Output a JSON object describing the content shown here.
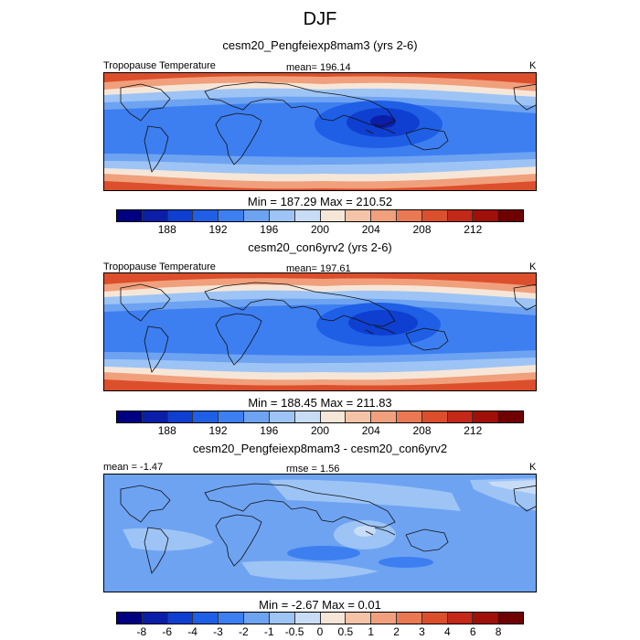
{
  "title": "DJF",
  "panels": [
    {
      "title": "cesm20_Pengfeiexp8mam3 (yrs 2-6)",
      "left_label": "Tropopause Temperature",
      "center_label": "mean= 196.14",
      "right_label": "K",
      "minmax": "Min = 187.29 Max = 210.52",
      "colorbar": {
        "colors": [
          "#000080",
          "#0a1ea8",
          "#0e3fd0",
          "#1f5fe6",
          "#3d7ff0",
          "#6ea3f2",
          "#9dc4f5",
          "#c8dcf6",
          "#f6e6d8",
          "#f5c4a8",
          "#f0a07c",
          "#ea7852",
          "#dc4f2c",
          "#c42818",
          "#a01008",
          "#700000"
        ],
        "tick_labels": [
          "188",
          "192",
          "196",
          "200",
          "204",
          "208",
          "212"
        ]
      }
    },
    {
      "title": "cesm20_con6yrv2 (yrs 2-6)",
      "left_label": "Tropopause Temperature",
      "center_label": "mean= 197.61",
      "right_label": "K",
      "minmax": "Min = 188.45 Max = 211.83",
      "colorbar": {
        "colors": [
          "#000080",
          "#0a1ea8",
          "#0e3fd0",
          "#1f5fe6",
          "#3d7ff0",
          "#6ea3f2",
          "#9dc4f5",
          "#c8dcf6",
          "#f6e6d8",
          "#f5c4a8",
          "#f0a07c",
          "#ea7852",
          "#dc4f2c",
          "#c42818",
          "#a01008",
          "#700000"
        ],
        "tick_labels": [
          "188",
          "192",
          "196",
          "200",
          "204",
          "208",
          "212"
        ]
      }
    },
    {
      "title": "cesm20_Pengfeiexp8mam3 - cesm20_con6yrv2",
      "left_label": "mean = -1.47",
      "center_label": "rmse = 1.56",
      "right_label": "K",
      "minmax": "Min = -2.67 Max = 0.01",
      "colorbar": {
        "colors": [
          "#000080",
          "#0a1ea8",
          "#0e3fd0",
          "#1f5fe6",
          "#3d7ff0",
          "#6ea3f2",
          "#9dc4f5",
          "#c8dcf6",
          "#f6e6d8",
          "#f5c4a8",
          "#f0a07c",
          "#ea7852",
          "#dc4f2c",
          "#c42818",
          "#a01008",
          "#700000"
        ],
        "tick_labels": [
          "-8",
          "-6",
          "-4",
          "-3",
          "-2",
          "-1",
          "-0.5",
          "0",
          "0.5",
          "1",
          "2",
          "3",
          "4",
          "6",
          "8"
        ]
      }
    }
  ],
  "chart_data": [
    {
      "type": "heatmap",
      "title": "cesm20_Pengfeiexp8mam3 (yrs 2-6)",
      "variable": "Tropopause Temperature",
      "units": "K",
      "mean": 196.14,
      "min": 187.29,
      "max": 210.52,
      "levels": [
        188,
        192,
        196,
        200,
        204,
        208,
        212
      ]
    },
    {
      "type": "heatmap",
      "title": "cesm20_con6yrv2 (yrs 2-6)",
      "variable": "Tropopause Temperature",
      "units": "K",
      "mean": 197.61,
      "min": 188.45,
      "max": 211.83,
      "levels": [
        188,
        192,
        196,
        200,
        204,
        208,
        212
      ]
    },
    {
      "type": "heatmap",
      "title": "cesm20_Pengfeiexp8mam3 - cesm20_con6yrv2",
      "units": "K",
      "mean": -1.47,
      "rmse": 1.56,
      "min": -2.67,
      "max": 0.01,
      "levels": [
        -8,
        -6,
        -4,
        -3,
        -2,
        -1,
        -0.5,
        0,
        0.5,
        1,
        2,
        3,
        4,
        6,
        8
      ]
    }
  ]
}
